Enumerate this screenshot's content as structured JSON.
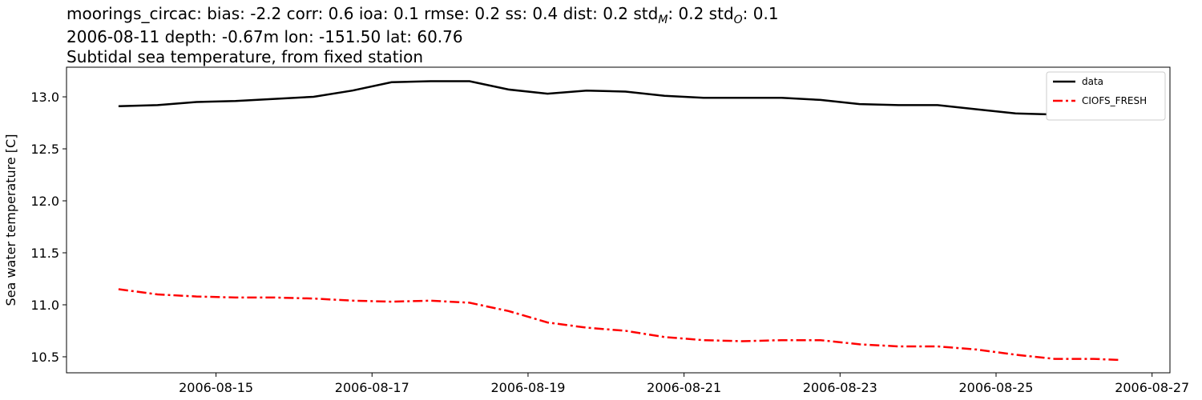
{
  "chart_data": {
    "type": "line",
    "title": [
      {
        "text": "moorings_circac: bias: -2.2  corr: 0.6  ioa: 0.1  rmse: 0.2  ss: 0.4  dist: 0.2  std"
      },
      {
        "text": "M",
        "subscript": true
      },
      {
        "text": ": 0.2  std"
      },
      {
        "text": "O",
        "subscript": true
      },
      {
        "text": ": 0.1"
      }
    ],
    "subtitle": "2006-08-11 depth: -0.67m lon: -151.50 lat: 60.76",
    "subtitle2": "Subtidal sea temperature, from fixed station",
    "ylabel": "Sea water temperature [C]",
    "x": [
      "2006-08-13T18:00",
      "2006-08-14T06:00",
      "2006-08-14T18:00",
      "2006-08-15T06:00",
      "2006-08-15T18:00",
      "2006-08-16T06:00",
      "2006-08-16T18:00",
      "2006-08-17T06:00",
      "2006-08-17T18:00",
      "2006-08-18T06:00",
      "2006-08-18T18:00",
      "2006-08-19T06:00",
      "2006-08-19T18:00",
      "2006-08-20T06:00",
      "2006-08-20T18:00",
      "2006-08-21T06:00",
      "2006-08-21T18:00",
      "2006-08-22T06:00",
      "2006-08-22T18:00",
      "2006-08-23T06:00",
      "2006-08-23T18:00",
      "2006-08-24T06:00",
      "2006-08-24T18:00",
      "2006-08-25T06:00",
      "2006-08-25T18:00",
      "2006-08-26T06:00",
      "2006-08-26T14:00"
    ],
    "series": [
      {
        "name": "data",
        "color": "#000000",
        "dash": "solid",
        "values": [
          12.91,
          12.92,
          12.95,
          12.96,
          12.98,
          13.0,
          13.06,
          13.14,
          13.15,
          13.15,
          13.07,
          13.03,
          13.06,
          13.05,
          13.01,
          12.99,
          12.99,
          12.99,
          12.97,
          12.93,
          12.92,
          12.92,
          12.88,
          12.84,
          12.83,
          12.83,
          12.83
        ]
      },
      {
        "name": "CIOFS_FRESH",
        "color": "#ff0000",
        "dash": "dashdot",
        "values": [
          11.15,
          11.1,
          11.08,
          11.07,
          11.07,
          11.06,
          11.04,
          11.03,
          11.04,
          11.02,
          10.94,
          10.83,
          10.78,
          10.75,
          10.69,
          10.66,
          10.65,
          10.66,
          10.66,
          10.62,
          10.6,
          10.6,
          10.57,
          10.52,
          10.48,
          10.48,
          10.47
        ]
      }
    ],
    "xlim": [
      "2006-08-13T02:00",
      "2006-08-27T05:30"
    ],
    "xticks": [
      "2006-08-15",
      "2006-08-17",
      "2006-08-19",
      "2006-08-21",
      "2006-08-23",
      "2006-08-25",
      "2006-08-27"
    ],
    "ylim": [
      10.346,
      13.285
    ],
    "yticks": [
      {
        "value": 10.5,
        "label": "10.5"
      },
      {
        "value": 11,
        "label": "11.0"
      },
      {
        "value": 11.5,
        "label": "11.5"
      },
      {
        "value": 12,
        "label": "12.0"
      },
      {
        "value": 12.5,
        "label": "12.5"
      },
      {
        "value": 13,
        "label": "13.0"
      }
    ],
    "grid": false,
    "legend_position": "upper-right"
  }
}
